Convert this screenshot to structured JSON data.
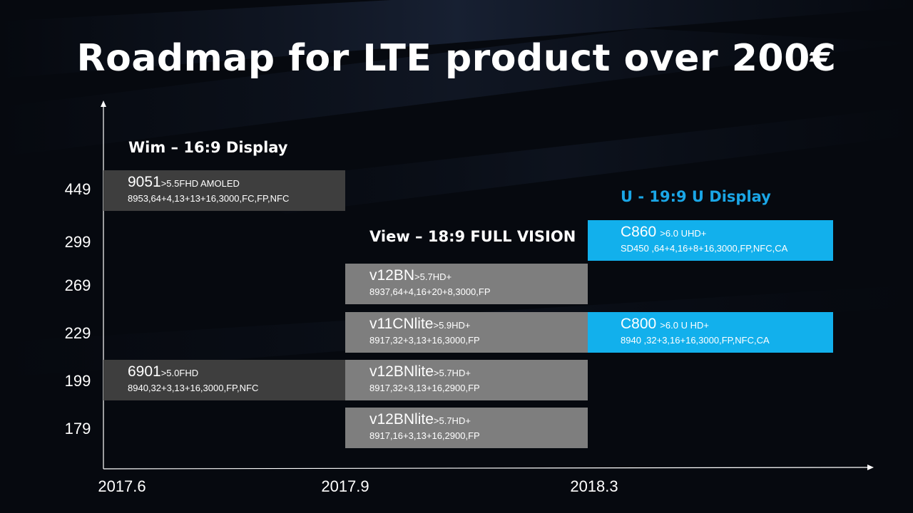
{
  "title": "Roadmap for LTE product over 200€",
  "colors": {
    "background": "#06090f",
    "wim_box": "#3e3e3e",
    "view_box": "#7e7e7e",
    "u_box": "#12b0ec",
    "u_label": "#1aa6e6",
    "axis": "#ffffff"
  },
  "axis": {
    "prices": [
      "449",
      "299",
      "269",
      "229",
      "199",
      "179"
    ],
    "dates": [
      "2017.6",
      "2017.9",
      "2018.3"
    ]
  },
  "series": {
    "wim": "Wim – 16:9 Display",
    "view": "View – 18:9 FULL VISION",
    "u": "U - 19:9 U Display"
  },
  "products": [
    {
      "model": "9051",
      "spec": ">5.5FHD AMOLED",
      "detail": "8953,64+4,13+13+16,3000,FC,FP,NFC"
    },
    {
      "model": "6901",
      "spec": ">5.0FHD",
      "detail": "8940,32+3,13+16,3000,FP,NFC"
    },
    {
      "model": "v12BN",
      "spec": ">5.7HD+",
      "detail": "8937,64+4,16+20+8,3000,FP"
    },
    {
      "model": "v11CNlite",
      "spec": ">5.9HD+",
      "detail": "8917,32+3,13+16,3000,FP"
    },
    {
      "model": "v12BNlite",
      "spec": ">5.7HD+",
      "detail": "8917,32+3,13+16,2900,FP"
    },
    {
      "model": "v12BNlite",
      "spec": ">5.7HD+",
      "detail": "8917,16+3,13+16,2900,FP"
    },
    {
      "model": "C860",
      "spec": ">6.0 UHD+",
      "detail": "SD450 ,64+4,16+8+16,3000,FP,NFC,CA"
    },
    {
      "model": "C800",
      "spec": ">6.0 U HD+",
      "detail": "8940 ,32+3,16+16,3000,FP,NFC,CA"
    }
  ]
}
